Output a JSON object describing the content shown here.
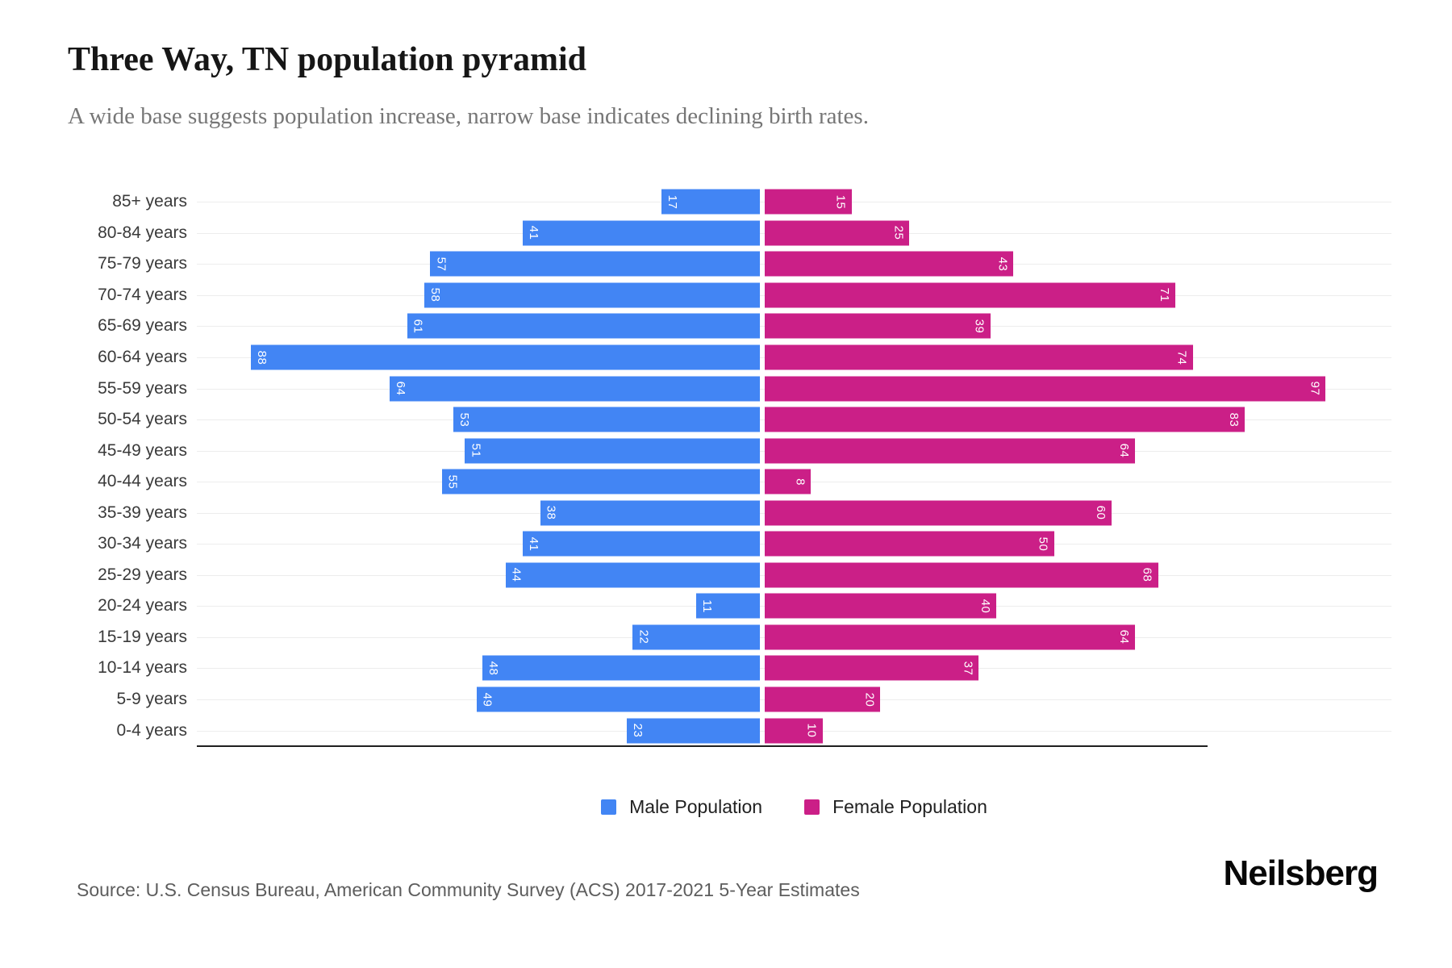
{
  "header": {
    "title": "Three Way, TN population pyramid",
    "subtitle": "A wide base suggests population increase, narrow base indicates declining birth rates."
  },
  "colors": {
    "male": "#4285F4",
    "female": "#CB1F87",
    "gridline": "#EDEDED",
    "axis_line": "#1F1F1F",
    "value_label": "#FFFFFF"
  },
  "legend": {
    "items": [
      {
        "label": "Male Population",
        "color_key": "male"
      },
      {
        "label": "Female Population",
        "color_key": "female"
      }
    ]
  },
  "footer": {
    "source": "Source: U.S. Census Bureau, American Community Survey (ACS) 2017-2021 5-Year Estimates",
    "brand": "Neilsberg"
  },
  "chart_data": {
    "type": "bar",
    "subtype": "population_pyramid",
    "orientation": "horizontal",
    "title": "Three Way, TN population pyramid",
    "subtitle": "A wide base suggests population increase, narrow base indicates declining birth rates.",
    "categories": [
      "85+ years",
      "80-84 years",
      "75-79 years",
      "70-74 years",
      "65-69 years",
      "60-64 years",
      "55-59 years",
      "50-54 years",
      "45-49 years",
      "40-44 years",
      "35-39 years",
      "30-34 years",
      "25-29 years",
      "20-24 years",
      "15-19 years",
      "10-14 years",
      "5-9 years",
      "0-4 years"
    ],
    "series": [
      {
        "name": "Male Population",
        "side": "left",
        "color": "#4285F4",
        "values": [
          17,
          41,
          57,
          58,
          61,
          88,
          64,
          53,
          51,
          55,
          38,
          41,
          44,
          11,
          22,
          48,
          49,
          23
        ]
      },
      {
        "name": "Female Population",
        "side": "right",
        "color": "#CB1F87",
        "values": [
          15,
          25,
          43,
          71,
          39,
          74,
          97,
          83,
          64,
          8,
          60,
          50,
          68,
          40,
          64,
          37,
          20,
          10
        ]
      }
    ],
    "value_labels": "inside_end, rotated 90deg, white",
    "x_max_per_side": 100,
    "grid": true,
    "legend_position": "bottom"
  }
}
